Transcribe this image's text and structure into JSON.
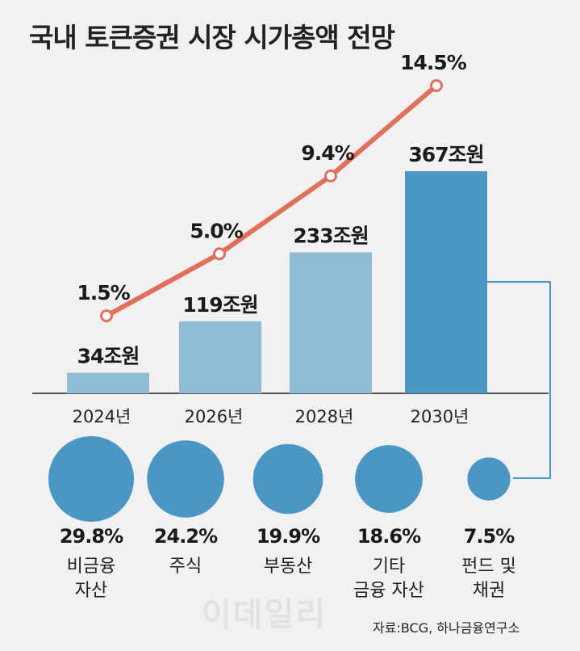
{
  "title": "국내 토큰증권 시장 시가총액 전망",
  "chart_data": [
    {
      "type": "bar",
      "categories": [
        "2024년",
        "2026년",
        "2028년",
        "2030년"
      ],
      "values": [
        34,
        119,
        233,
        367
      ],
      "value_labels": [
        "34조원",
        "119조원",
        "233조원",
        "367조원"
      ],
      "ylim": [
        0,
        400
      ],
      "bar_colors": [
        "#8fbcd2",
        "#8fbcd2",
        "#8fbcd2",
        "#4a96c4"
      ],
      "line_series": {
        "values": [
          1.5,
          5.0,
          9.4,
          14.5
        ],
        "labels": [
          "1.5%",
          "5.0%",
          "9.4%",
          "14.5%"
        ],
        "color": "#e0705c"
      }
    },
    {
      "type": "bubble",
      "items": [
        {
          "value": 29.8,
          "percent_label": "29.8%",
          "label_lines": [
            "비금융",
            "자산"
          ]
        },
        {
          "value": 24.2,
          "percent_label": "24.2%",
          "label_lines": [
            "주식"
          ]
        },
        {
          "value": 19.9,
          "percent_label": "19.9%",
          "label_lines": [
            "부동산"
          ]
        },
        {
          "value": 18.6,
          "percent_label": "18.6%",
          "label_lines": [
            "기타",
            "금융 자산"
          ]
        },
        {
          "value": 7.5,
          "percent_label": "7.5%",
          "label_lines": [
            "펀드 및",
            "채권"
          ]
        }
      ],
      "color": "#4a96c4"
    }
  ],
  "source": "자료:BCG, 하나금융연구소",
  "watermark": "이데일리"
}
